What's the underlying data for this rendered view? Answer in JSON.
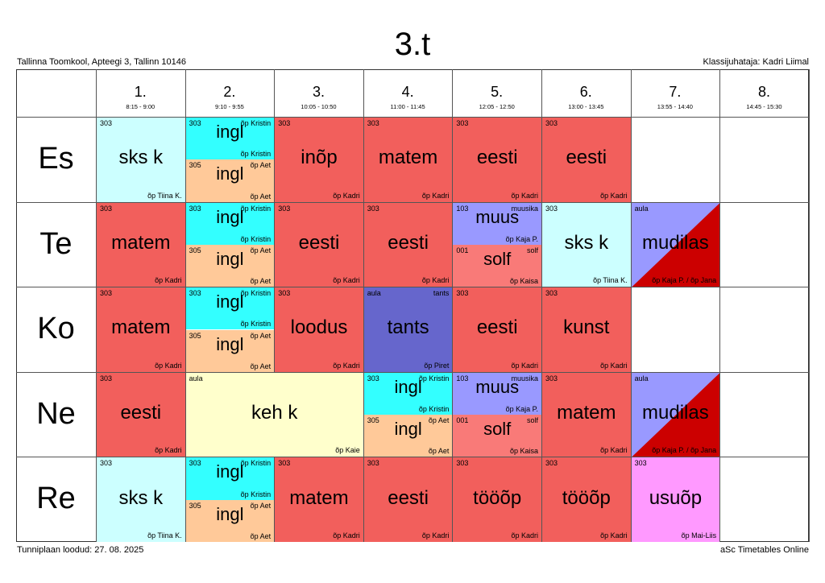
{
  "title": "3.t",
  "school": "Tallinna Toomkool, Apteegi 3, Tallinn 10146",
  "class_teacher": "Klassijuhataja: Kadri Liimal",
  "created": "Tunniplaan loodud: 27. 08. 2025",
  "brand": "aSc Timetables Online",
  "colors": {
    "matem": "#f25f5c",
    "sks": "#ccffff",
    "ingl": "#33ffff",
    "ingl_aet": "#ffc999",
    "muus": "#9999ff",
    "solf": "#f97a78",
    "tants": "#6666cc",
    "keh": "#ffffcc",
    "usuop": "#ff99ff",
    "mudilas_a": "#9999ff",
    "mudilas_b": "#cc0000"
  },
  "periods": [
    {
      "num": "1.",
      "time": "8:15 - 9:00"
    },
    {
      "num": "2.",
      "time": "9:10 - 9:55"
    },
    {
      "num": "3.",
      "time": "10:05 - 10:50"
    },
    {
      "num": "4.",
      "time": "11:00 - 11:45"
    },
    {
      "num": "5.",
      "time": "12:05 - 12:50"
    },
    {
      "num": "6.",
      "time": "13:00 - 13:45"
    },
    {
      "num": "7.",
      "time": "13:55 - 14:40"
    },
    {
      "num": "8.",
      "time": "14:45 - 15:30"
    }
  ],
  "days": [
    "Es",
    "Te",
    "Ko",
    "Ne",
    "Re"
  ],
  "lessons": [
    {
      "day": 0,
      "period": 0,
      "span": 1,
      "half": "full",
      "room": "303",
      "group": "",
      "subject": "sks k",
      "teacher": "õp Tiina K.",
      "color": "#ccffff"
    },
    {
      "day": 0,
      "period": 1,
      "span": 1,
      "half": "top",
      "room": "303",
      "group": "õp Kristin",
      "subject": "ingl",
      "teacher": "õp Kristin",
      "color": "#33ffff"
    },
    {
      "day": 0,
      "period": 1,
      "span": 1,
      "half": "bottom",
      "room": "305",
      "group": "õp Aet",
      "subject": "ingl",
      "teacher": "õp Aet",
      "color": "#ffc999"
    },
    {
      "day": 0,
      "period": 2,
      "span": 1,
      "half": "full",
      "room": "303",
      "group": "",
      "subject": "inõp",
      "teacher": "õp Kadri",
      "color": "#f25f5c"
    },
    {
      "day": 0,
      "period": 3,
      "span": 1,
      "half": "full",
      "room": "303",
      "group": "",
      "subject": "matem",
      "teacher": "õp Kadri",
      "color": "#f25f5c"
    },
    {
      "day": 0,
      "period": 4,
      "span": 1,
      "half": "full",
      "room": "303",
      "group": "",
      "subject": "eesti",
      "teacher": "õp Kadri",
      "color": "#f25f5c"
    },
    {
      "day": 0,
      "period": 5,
      "span": 1,
      "half": "full",
      "room": "303",
      "group": "",
      "subject": "eesti",
      "teacher": "õp Kadri",
      "color": "#f25f5c"
    },
    {
      "day": 1,
      "period": 0,
      "span": 1,
      "half": "full",
      "room": "303",
      "group": "",
      "subject": "matem",
      "teacher": "õp Kadri",
      "color": "#f25f5c"
    },
    {
      "day": 1,
      "period": 1,
      "span": 1,
      "half": "top",
      "room": "303",
      "group": "õp Kristin",
      "subject": "ingl",
      "teacher": "õp Kristin",
      "color": "#33ffff"
    },
    {
      "day": 1,
      "period": 1,
      "span": 1,
      "half": "bottom",
      "room": "305",
      "group": "õp Aet",
      "subject": "ingl",
      "teacher": "õp Aet",
      "color": "#ffc999"
    },
    {
      "day": 1,
      "period": 2,
      "span": 1,
      "half": "full",
      "room": "303",
      "group": "",
      "subject": "eesti",
      "teacher": "õp Kadri",
      "color": "#f25f5c"
    },
    {
      "day": 1,
      "period": 3,
      "span": 1,
      "half": "full",
      "room": "303",
      "group": "",
      "subject": "eesti",
      "teacher": "õp Kadri",
      "color": "#f25f5c"
    },
    {
      "day": 1,
      "period": 4,
      "span": 1,
      "half": "top",
      "room": "103",
      "group": "muusika",
      "subject": "muus",
      "teacher": "õp Kaja P.",
      "color": "#9999ff"
    },
    {
      "day": 1,
      "period": 4,
      "span": 1,
      "half": "bottom",
      "room": "001",
      "group": "solf",
      "subject": "solf",
      "teacher": "õp Kaisa",
      "color": "#f97a78"
    },
    {
      "day": 1,
      "period": 5,
      "span": 1,
      "half": "full",
      "room": "303",
      "group": "",
      "subject": "sks k",
      "teacher": "õp Tiina K.",
      "color": "#ccffff"
    },
    {
      "day": 1,
      "period": 6,
      "span": 1,
      "half": "diag",
      "room": "aula",
      "group": "",
      "subject": "mudilas",
      "teacher": "õp Kaja P. / õp Jana",
      "color": "#9999ff"
    },
    {
      "day": 2,
      "period": 0,
      "span": 1,
      "half": "full",
      "room": "303",
      "group": "",
      "subject": "matem",
      "teacher": "õp Kadri",
      "color": "#f25f5c"
    },
    {
      "day": 2,
      "period": 1,
      "span": 1,
      "half": "top",
      "room": "303",
      "group": "õp Kristin",
      "subject": "ingl",
      "teacher": "õp Kristin",
      "color": "#33ffff"
    },
    {
      "day": 2,
      "period": 1,
      "span": 1,
      "half": "bottom",
      "room": "305",
      "group": "õp Aet",
      "subject": "ingl",
      "teacher": "õp Aet",
      "color": "#ffc999"
    },
    {
      "day": 2,
      "period": 2,
      "span": 1,
      "half": "full",
      "room": "303",
      "group": "",
      "subject": "loodus",
      "teacher": "õp Kadri",
      "color": "#f25f5c"
    },
    {
      "day": 2,
      "period": 3,
      "span": 1,
      "half": "full",
      "room": "aula",
      "group": "tants",
      "subject": "tants",
      "teacher": "õp Piret",
      "color": "#6666cc"
    },
    {
      "day": 2,
      "period": 4,
      "span": 1,
      "half": "full",
      "room": "303",
      "group": "",
      "subject": "eesti",
      "teacher": "õp Kadri",
      "color": "#f25f5c"
    },
    {
      "day": 2,
      "period": 5,
      "span": 1,
      "half": "full",
      "room": "303",
      "group": "",
      "subject": "kunst",
      "teacher": "õp Kadri",
      "color": "#f25f5c"
    },
    {
      "day": 3,
      "period": 0,
      "span": 1,
      "half": "full",
      "room": "303",
      "group": "",
      "subject": "eesti",
      "teacher": "õp Kadri",
      "color": "#f25f5c"
    },
    {
      "day": 3,
      "period": 1,
      "span": 2,
      "half": "full",
      "room": "aula",
      "group": "",
      "subject": "keh k",
      "teacher": "õp Kaie",
      "color": "#ffffcc"
    },
    {
      "day": 3,
      "period": 3,
      "span": 1,
      "half": "top",
      "room": "303",
      "group": "õp Kristin",
      "subject": "ingl",
      "teacher": "õp Kristin",
      "color": "#33ffff"
    },
    {
      "day": 3,
      "period": 3,
      "span": 1,
      "half": "bottom",
      "room": "305",
      "group": "õp Aet",
      "subject": "ingl",
      "teacher": "õp Aet",
      "color": "#ffc999"
    },
    {
      "day": 3,
      "period": 4,
      "span": 1,
      "half": "top",
      "room": "103",
      "group": "muusika",
      "subject": "muus",
      "teacher": "õp Kaja P.",
      "color": "#9999ff"
    },
    {
      "day": 3,
      "period": 4,
      "span": 1,
      "half": "bottom",
      "room": "001",
      "group": "solf",
      "subject": "solf",
      "teacher": "õp Kaisa",
      "color": "#f97a78"
    },
    {
      "day": 3,
      "period": 5,
      "span": 1,
      "half": "full",
      "room": "303",
      "group": "",
      "subject": "matem",
      "teacher": "õp Kadri",
      "color": "#f25f5c"
    },
    {
      "day": 3,
      "period": 6,
      "span": 1,
      "half": "diag",
      "room": "aula",
      "group": "",
      "subject": "mudilas",
      "teacher": "õp Kaja P. / õp Jana",
      "color": "#9999ff"
    },
    {
      "day": 4,
      "period": 0,
      "span": 1,
      "half": "full",
      "room": "303",
      "group": "",
      "subject": "sks k",
      "teacher": "õp Tiina K.",
      "color": "#ccffff"
    },
    {
      "day": 4,
      "period": 1,
      "span": 1,
      "half": "top",
      "room": "303",
      "group": "õp Kristin",
      "subject": "ingl",
      "teacher": "õp Kristin",
      "color": "#33ffff"
    },
    {
      "day": 4,
      "period": 1,
      "span": 1,
      "half": "bottom",
      "room": "305",
      "group": "õp Aet",
      "subject": "ingl",
      "teacher": "õp Aet",
      "color": "#ffc999"
    },
    {
      "day": 4,
      "period": 2,
      "span": 1,
      "half": "full",
      "room": "303",
      "group": "",
      "subject": "matem",
      "teacher": "õp Kadri",
      "color": "#f25f5c"
    },
    {
      "day": 4,
      "period": 3,
      "span": 1,
      "half": "full",
      "room": "303",
      "group": "",
      "subject": "eesti",
      "teacher": "õp Kadri",
      "color": "#f25f5c"
    },
    {
      "day": 4,
      "period": 4,
      "span": 1,
      "half": "full",
      "room": "303",
      "group": "",
      "subject": "tööõp",
      "teacher": "õp Kadri",
      "color": "#f25f5c"
    },
    {
      "day": 4,
      "period": 5,
      "span": 1,
      "half": "full",
      "room": "303",
      "group": "",
      "subject": "tööõp",
      "teacher": "õp Kadri",
      "color": "#f25f5c"
    },
    {
      "day": 4,
      "period": 6,
      "span": 1,
      "half": "full",
      "room": "303",
      "group": "",
      "subject": "usuõp",
      "teacher": "õp Mai-Liis",
      "color": "#ff99ff"
    }
  ]
}
